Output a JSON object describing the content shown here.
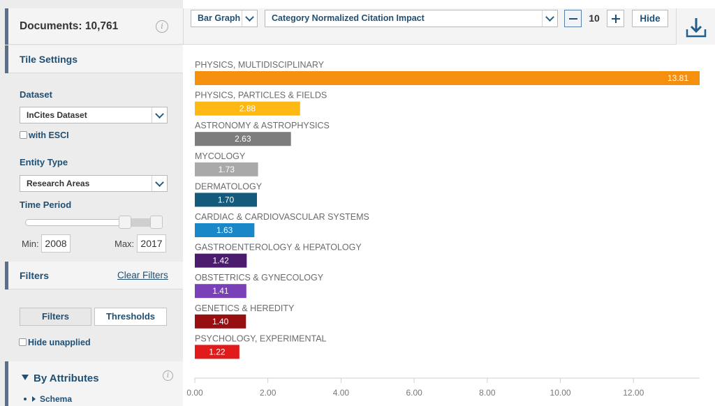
{
  "sidebar": {
    "documents_label": "Documents: 10,761",
    "tile_settings": "Tile Settings",
    "dataset_label": "Dataset",
    "dataset_value": "InCites Dataset",
    "esci_label": "with ESCI",
    "entity_type_label": "Entity Type",
    "entity_type_value": "Research Areas",
    "time_period_label": "Time Period",
    "min_label": "Min:",
    "min_value": "2008",
    "max_label": "Max:",
    "max_value": "2017",
    "filters_title": "Filters",
    "clear_filters": "Clear Filters",
    "filters_button": "Filters",
    "thresholds_button": "Thresholds",
    "hide_unapplied": "Hide unapplied",
    "by_attributes": "By Attributes",
    "schema": "Schema"
  },
  "toolbar": {
    "chart_type": "Bar Graph",
    "metric": "Category Normalized Citation Impact",
    "count": "10",
    "hide_label": "Hide"
  },
  "icons": {
    "info": "info-icon",
    "download": "download-icon",
    "chevron": "chevron-down-icon"
  },
  "chart_data": {
    "type": "bar",
    "orientation": "horizontal",
    "categories": [
      "PHYSICS, MULTIDISCIPLINARY",
      "PHYSICS, PARTICLES & FIELDS",
      "ASTRONOMY & ASTROPHYSICS",
      "MYCOLOGY",
      "DERMATOLOGY",
      "CARDIAC & CARDIOVASCULAR SYSTEMS",
      "GASTROENTEROLOGY & HEPATOLOGY",
      "OBSTETRICS & GYNECOLOGY",
      "GENETICS & HEREDITY",
      "PSYCHOLOGY, EXPERIMENTAL"
    ],
    "values": [
      13.81,
      2.88,
      2.63,
      1.73,
      1.7,
      1.63,
      1.42,
      1.41,
      1.4,
      1.22
    ],
    "value_labels": [
      "13.81",
      "2.88",
      "2.63",
      "1.73",
      "1.70",
      "1.63",
      "1.42",
      "1.41",
      "1.40",
      "1.22"
    ],
    "colors": [
      "#f5900f",
      "#fdb813",
      "#7d7d7d",
      "#a9a9a9",
      "#145a7c",
      "#1987c8",
      "#4b1c6e",
      "#7a40b8",
      "#980f12",
      "#e11b1b"
    ],
    "xticks": [
      "0.00",
      "2.00",
      "4.00",
      "6.00",
      "8.00",
      "10.00",
      "12.00"
    ],
    "xtick_values": [
      0,
      2,
      4,
      6,
      8,
      10,
      12
    ],
    "xlim": [
      0,
      13.81
    ],
    "title": "",
    "xlabel": "",
    "ylabel": ""
  }
}
